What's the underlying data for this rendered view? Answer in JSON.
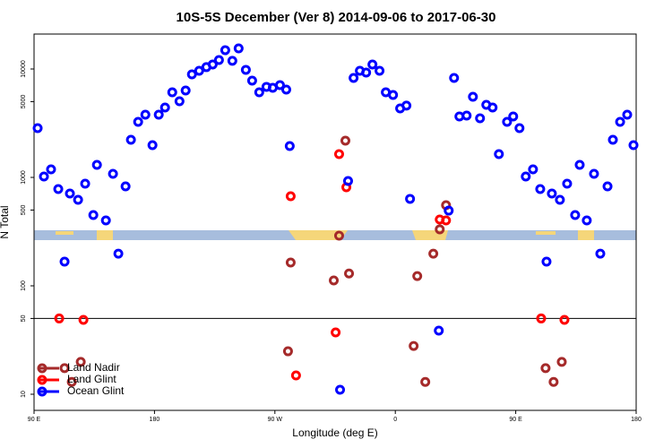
{
  "chart_data": {
    "type": "scatter",
    "title": "10S-5S December (Ver 8)   2014-09-06 to 2017-06-30",
    "x_label": "Longitude (deg E)",
    "y_label": "N Total",
    "log_y": true,
    "legend": "lower left",
    "xlim": [
      90,
      540
    ],
    "xticks": [
      {
        "value": 90,
        "label": "90 E"
      },
      180,
      {
        "value": 270,
        "label": "90 W"
      },
      {
        "value": 360,
        "label": "0"
      },
      {
        "value": 450,
        "label": "90 E"
      },
      {
        "value": 540,
        "label": "180"
      }
    ],
    "ylim": [
      7.1,
      21000
    ],
    "yticks": [
      10,
      50,
      100,
      500,
      1000,
      5000,
      10000
    ],
    "reference_line": 50,
    "series": [
      {
        "name": "Land Nadir",
        "color": "#a52a2a",
        "x": [
          112.8,
          118.2,
          124.9,
          279.8,
          281.8,
          314,
          318,
          322.7,
          325.4,
          373.7,
          376.4,
          382.4,
          388.4,
          393.2,
          397.9,
          472.3,
          478.3,
          484.4
        ],
        "values": [
          17.4,
          13,
          19.9,
          24.9,
          164,
          112,
          290,
          2180,
          130,
          27.9,
          123,
          13,
          198,
          332,
          554,
          17.4,
          13,
          19.9
        ]
      },
      {
        "name": "Land Glint",
        "color": "#ff0000",
        "x": [
          108.8,
          126.9,
          281.8,
          285.8,
          315.4,
          318,
          323.4,
          393.2,
          397.9,
          469,
          486.4
        ],
        "values": [
          50,
          48.5,
          670,
          14.9,
          37.2,
          1640,
          811,
          409,
          401,
          50,
          48.5
        ]
      },
      {
        "name": "Ocean Glint",
        "color": "#0000ff",
        "x": [
          92.7,
          97.4,
          102.7,
          108.1,
          116.8,
          122.9,
          128.2,
          137,
          134.3,
          143.7,
          149,
          112.8,
          153,
          158.4,
          162.4,
          167.8,
          173.2,
          178.5,
          183.2,
          187.9,
          193.3,
          198.7,
          203.3,
          208,
          213.4,
          218.8,
          223.5,
          228.2,
          232.9,
          238.2,
          242.9,
          248.3,
          253,
          258.3,
          263.7,
          268.4,
          273.8,
          278.5,
          281.1,
          318.7,
          324.7,
          328.8,
          333.5,
          338.2,
          342.9,
          348.2,
          352.9,
          358.3,
          363.6,
          368.3,
          371,
          399.9,
          403.9,
          407.9,
          413.3,
          418,
          423.3,
          428,
          432.7,
          437.4,
          443.5,
          448.1,
          452.8,
          457.5,
          462.9,
          468.3,
          473,
          477,
          483,
          488.4,
          494.4,
          497.8,
          503.1,
          508.5,
          513.2,
          518.6,
          522.6,
          528,
          533.3,
          538,
          392.5
        ],
        "values": [
          2850,
          1019,
          1186,
          781,
          710,
          621,
          875,
          1306,
          450,
          401,
          1079,
          167,
          198,
          826,
          2224,
          3254,
          3790,
          1985,
          3790,
          4413,
          6098,
          5040,
          6336,
          8920,
          9630,
          10400,
          11000,
          12100,
          14900,
          11900,
          15500,
          9820,
          7810,
          6100,
          6840,
          6700,
          7100,
          6450,
          1946,
          11,
          927,
          8270,
          9630,
          9270,
          11000,
          9630,
          6100,
          5760,
          4330,
          4590,
          634,
          494,
          8270,
          3650,
          3720,
          5540,
          3510,
          4670,
          4413,
          1640,
          3254,
          3650,
          2850,
          1019,
          1186,
          781,
          167,
          710,
          621,
          875,
          450,
          1306,
          401,
          1079,
          198,
          826,
          2224,
          3254,
          3790,
          1985,
          38.6
        ]
      }
    ]
  }
}
